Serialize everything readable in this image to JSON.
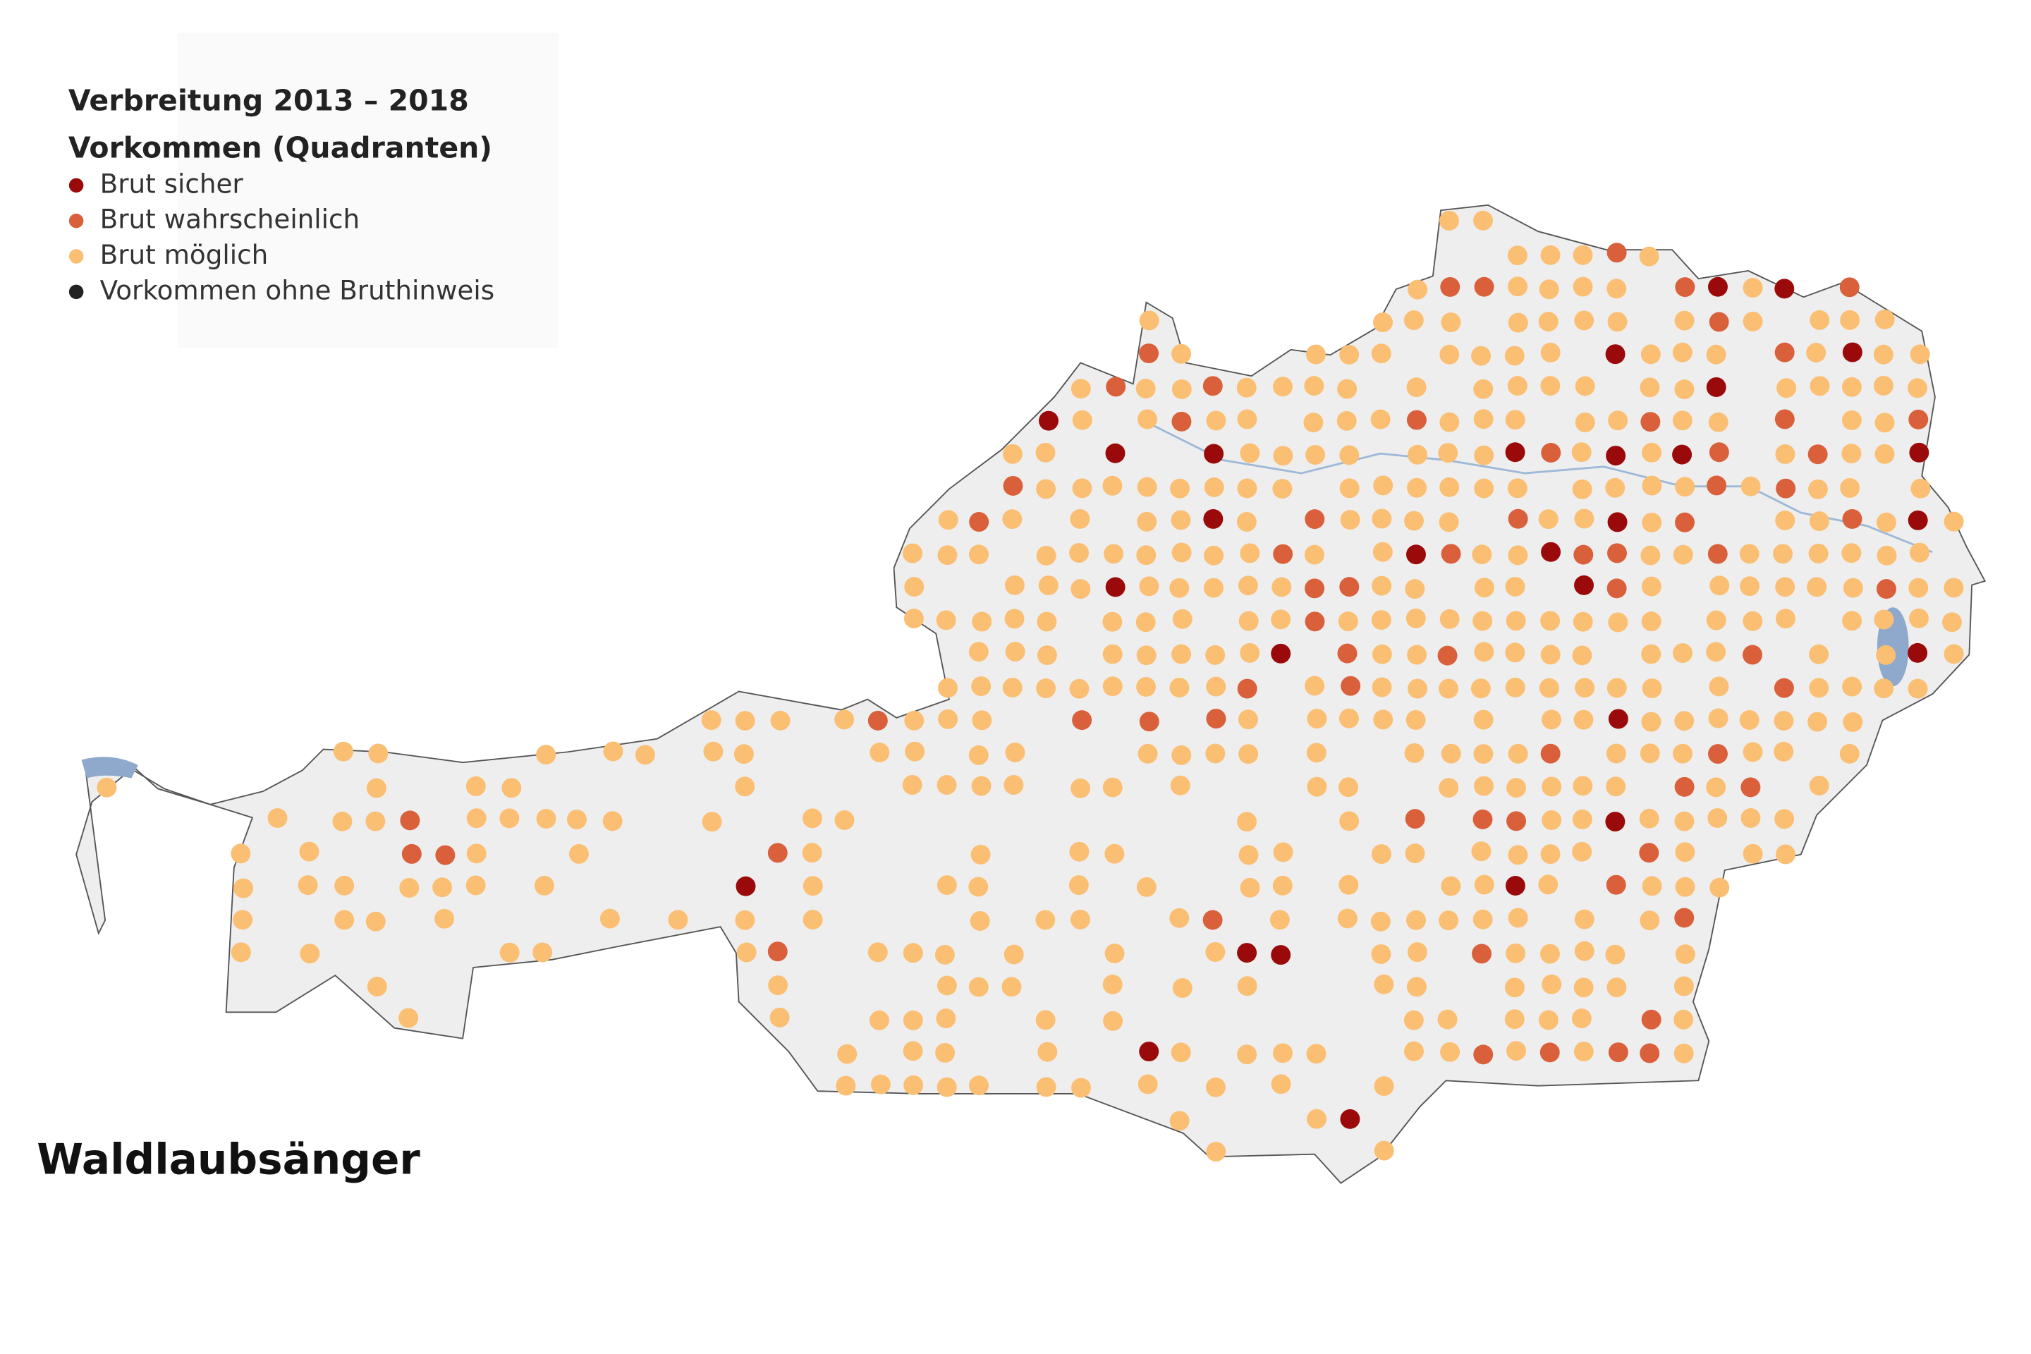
{
  "legend": {
    "title": "Verbreitung 2013 – 2018",
    "subtitle": "Vorkommen (Quadranten)",
    "items": [
      {
        "label": "Brut sicher",
        "color": "#9b0a0a"
      },
      {
        "label": "Brut wahrscheinlich",
        "color": "#d9603b"
      },
      {
        "label": "Brut möglich",
        "color": "#fbbf73"
      },
      {
        "label": "Vorkommen ohne Bruthinweis",
        "color": "#222222"
      }
    ]
  },
  "species": "Waldlaubsänger"
}
